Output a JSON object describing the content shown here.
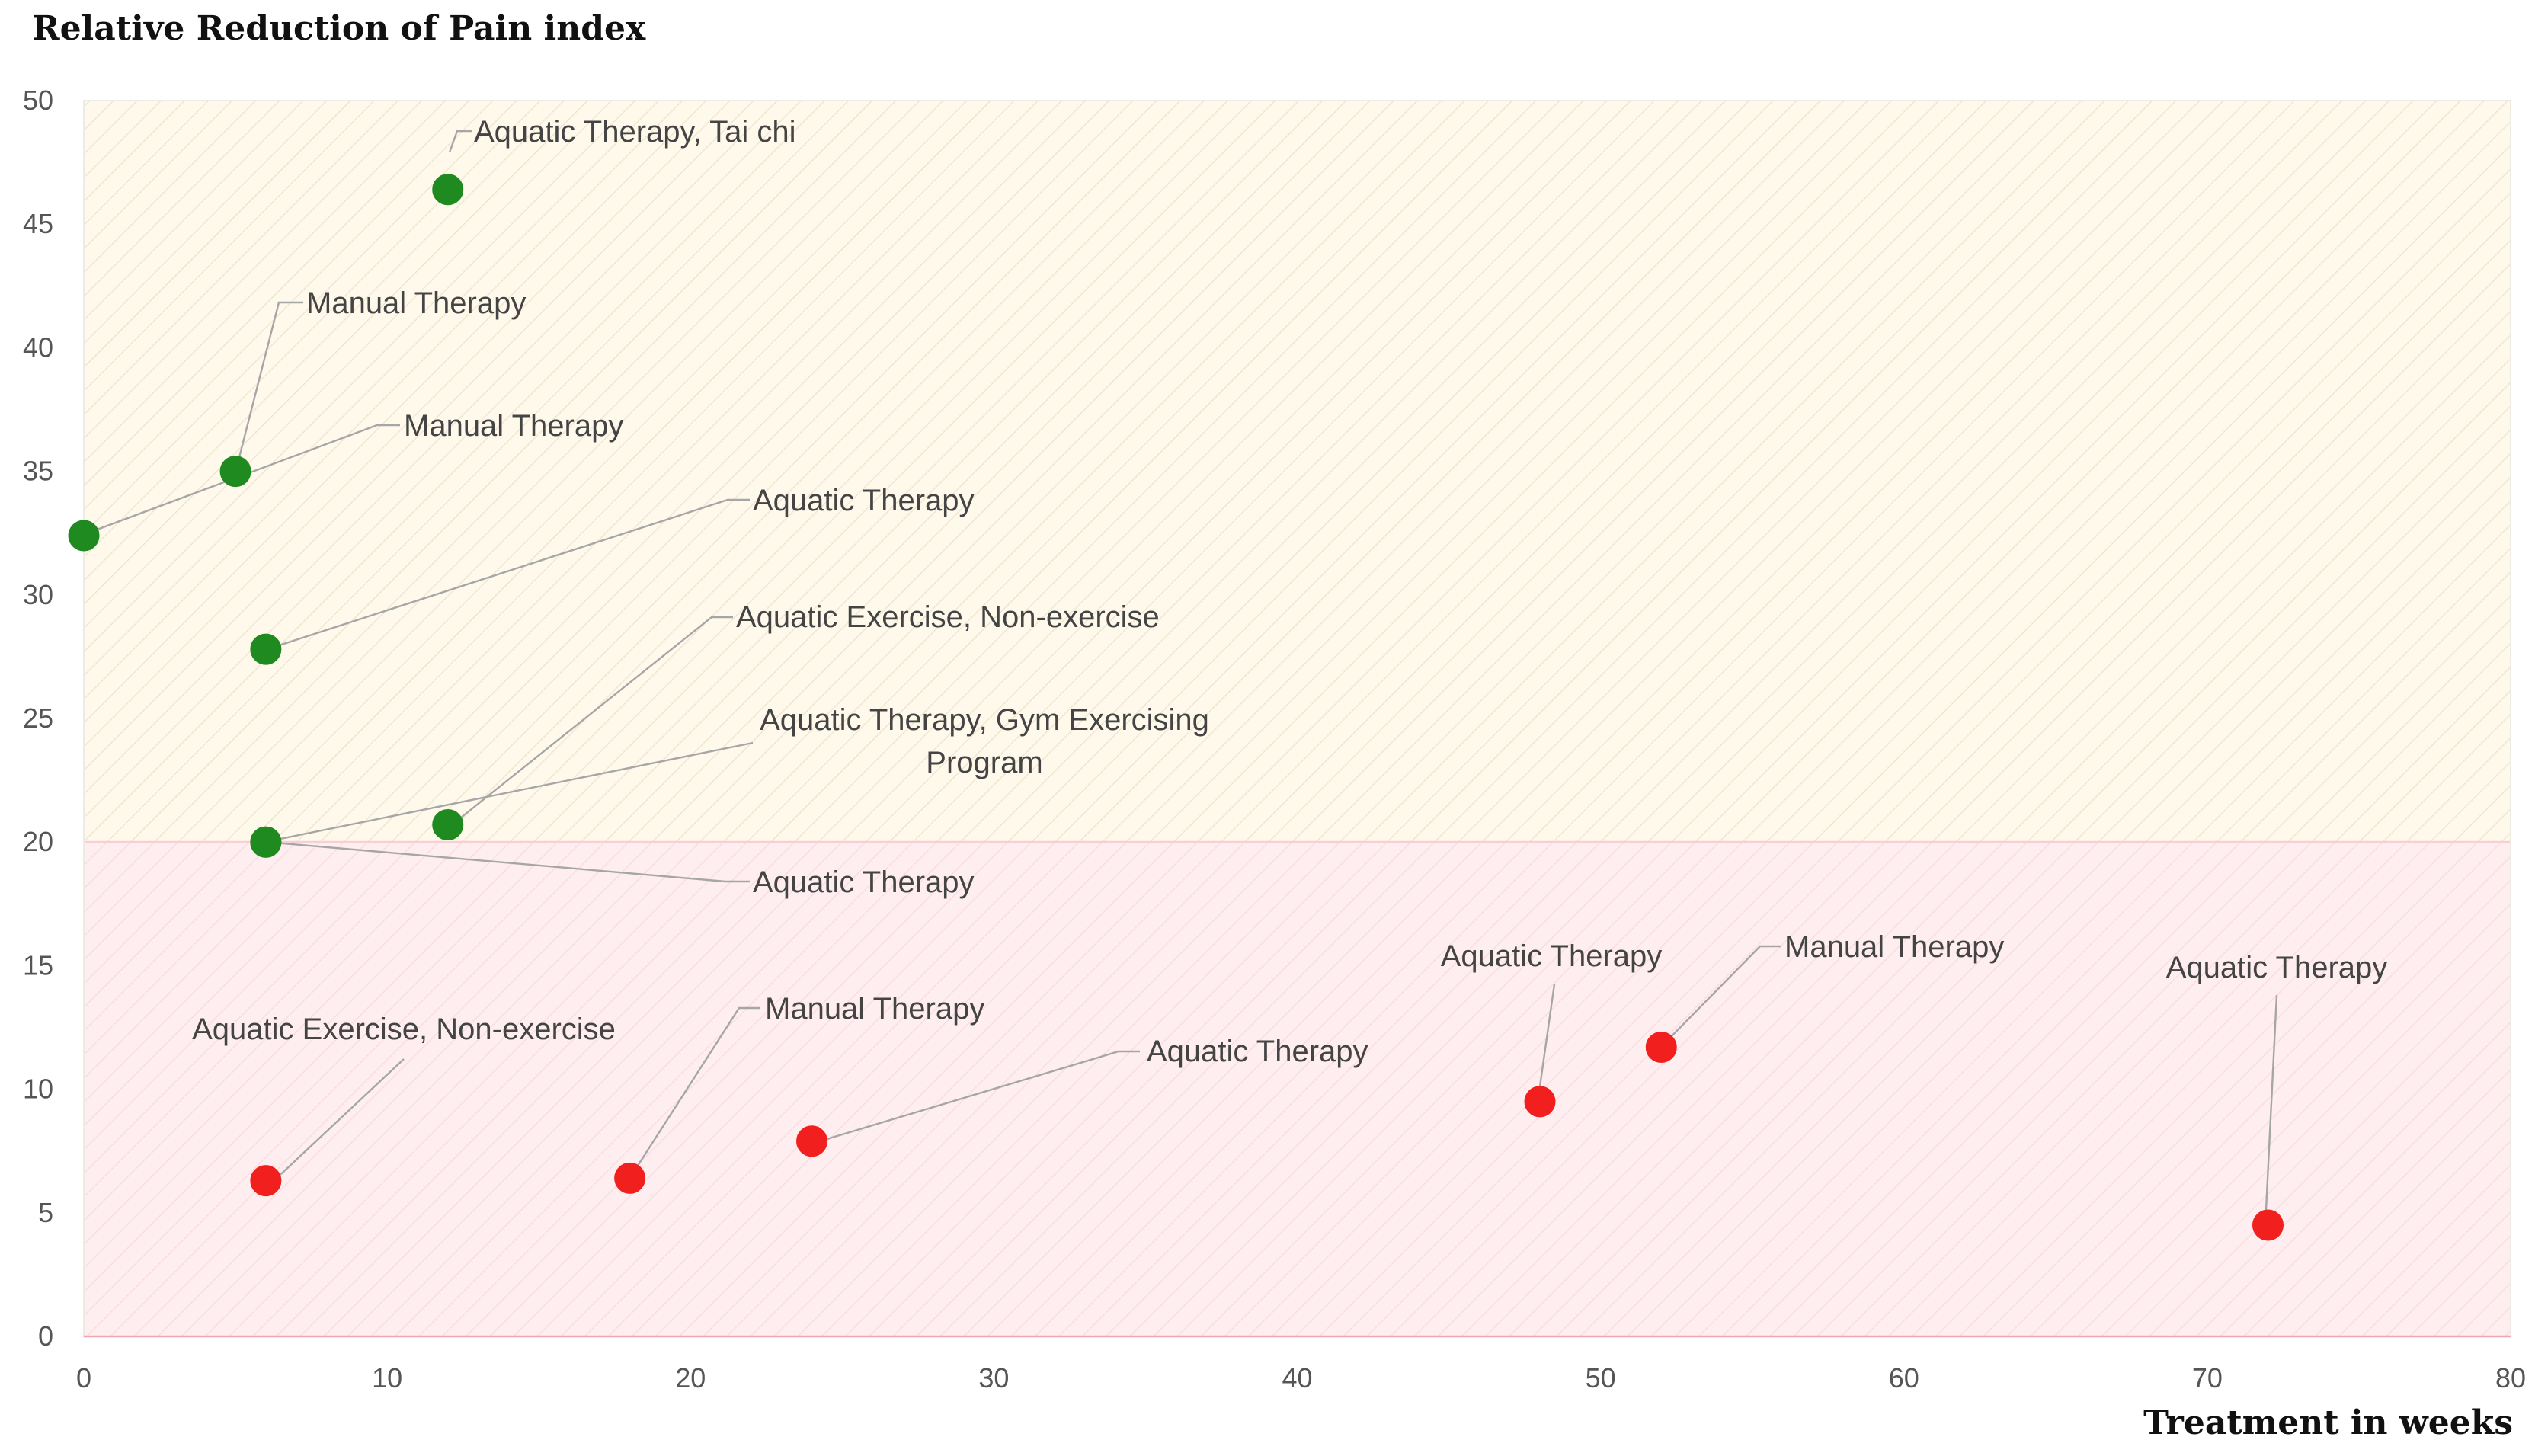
{
  "chart_data": {
    "type": "scatter",
    "title": "",
    "ylabel": "Relative Reduction of Pain index",
    "xlabel": "Treatment in weeks",
    "xlim": [
      0,
      80
    ],
    "ylim": [
      0,
      50
    ],
    "xticks": [
      0,
      10,
      20,
      30,
      40,
      50,
      60,
      70,
      80
    ],
    "yticks": [
      0,
      5,
      10,
      15,
      20,
      25,
      30,
      35,
      40,
      45,
      50
    ],
    "threshold": 20,
    "grid": false,
    "legend": "none",
    "colors": {
      "above": "#1f8a1f",
      "below": "#f21f1f",
      "region_above": "#fff9ec",
      "region_below": "#ffeef0",
      "threshold_line": "#f7d0d6"
    },
    "points": [
      {
        "x": 12,
        "y": 46.4,
        "group": "above",
        "label": [
          "Aquatic Therapy, Tai chi"
        ]
      },
      {
        "x": 5,
        "y": 35,
        "group": "above",
        "label": [
          "Manual Therapy"
        ]
      },
      {
        "x": 0,
        "y": 32.4,
        "group": "above",
        "label": [
          "Manual Therapy"
        ]
      },
      {
        "x": 6,
        "y": 27.8,
        "group": "above",
        "label": [
          "Aquatic Therapy"
        ]
      },
      {
        "x": 12,
        "y": 20.7,
        "group": "above",
        "label": [
          "Aquatic Exercise, Non-exercise"
        ]
      },
      {
        "x": 6,
        "y": 20,
        "group": "above",
        "label": [
          "Aquatic Therapy, Gym Exercising",
          "Program"
        ]
      },
      {
        "x": 6,
        "y": 20,
        "group": "above",
        "label": [
          "Aquatic Therapy"
        ]
      },
      {
        "x": 6,
        "y": 6.3,
        "group": "below",
        "label": [
          "Aquatic Exercise, Non-exercise"
        ]
      },
      {
        "x": 18,
        "y": 6.4,
        "group": "below",
        "label": [
          "Manual Therapy"
        ]
      },
      {
        "x": 24,
        "y": 7.9,
        "group": "below",
        "label": [
          "Aquatic Therapy"
        ]
      },
      {
        "x": 48,
        "y": 9.5,
        "group": "below",
        "label": [
          "Aquatic Therapy"
        ]
      },
      {
        "x": 52,
        "y": 11.7,
        "group": "below",
        "label": [
          "Manual Therapy"
        ]
      },
      {
        "x": 72,
        "y": 4.5,
        "group": "below",
        "label": [
          "Aquatic Therapy"
        ]
      }
    ]
  }
}
